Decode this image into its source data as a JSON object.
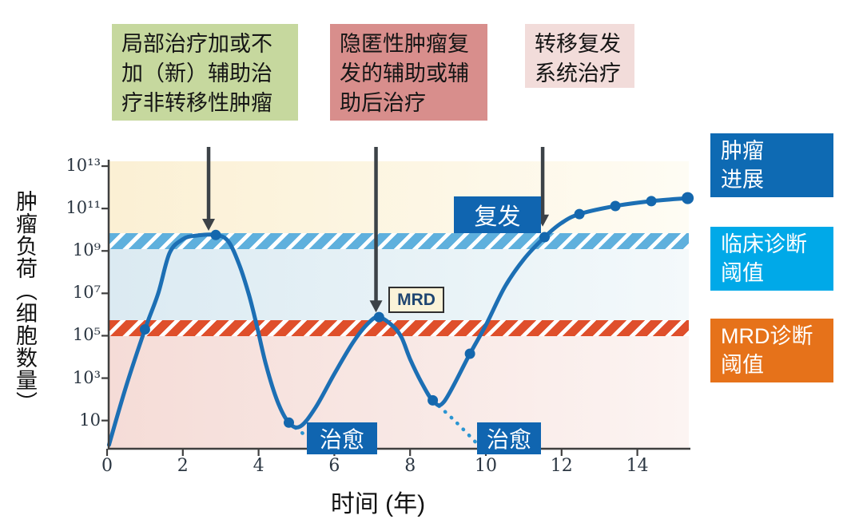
{
  "figure": {
    "x_axis_label": "时间 (年)",
    "y_axis_label": "肿瘤负荷（细胞数量）",
    "y_ticks": [
      "10¹³",
      "10¹¹",
      "10⁹",
      "10⁷",
      "10⁵",
      "10³",
      "10"
    ],
    "x_ticks": [
      "0",
      "2",
      "4",
      "6",
      "8",
      "10",
      "12",
      "14"
    ]
  },
  "top_boxes": [
    {
      "name": "local-therapy",
      "text": "局部治疗加或不\n加（新）辅助治\n疗非转移性肿瘤",
      "bg": "#c6d89e"
    },
    {
      "name": "occult-relapse-therapy",
      "text": "隐匿性肿瘤复\n发的辅助或辅\n助后治疗",
      "bg": "#d88e8c"
    },
    {
      "name": "metastatic-relapse-therapy",
      "text": "转移复发\n系统治疗",
      "bg": "#f2dcda"
    }
  ],
  "labels": {
    "mrd": "MRD",
    "relapse": "复发",
    "cure": "治愈"
  },
  "legend": [
    {
      "label": "肿瘤\n进展",
      "bg": "#0e6ab3"
    },
    {
      "label": "临床诊断\n阈值",
      "bg": "#00a9e8"
    },
    {
      "label": "MRD诊断\n阈值",
      "bg": "#e6721a"
    }
  ],
  "colors": {
    "curve": "#1c6fb4",
    "marker": "#1467ad",
    "dashed_cure": "#2a95d2",
    "clinical_stripe": "#5fb0dd",
    "mrd_stripe": "#df4f2b",
    "blue_label_bg": "#1065b0",
    "arrow": "#3c4247",
    "axis": "#3f3f3f"
  },
  "chart_data": {
    "type": "line",
    "xlabel": "时间 (年)",
    "ylabel": "肿瘤负荷（细胞数量）",
    "x_range": [
      0,
      15.5
    ],
    "y_scale": "log10(cells)",
    "y_tick_exponents": [
      13,
      11,
      9,
      7,
      5,
      3,
      1
    ],
    "x_tick_years": [
      0,
      2,
      4,
      6,
      8,
      10,
      12,
      14
    ],
    "clinical_threshold_log": 9.5,
    "mrd_threshold_log": 5.45,
    "marked_points_log": [
      [
        1.0,
        5.3
      ],
      [
        2.87,
        9.75
      ],
      [
        4.8,
        0.9
      ],
      [
        7.18,
        5.88
      ],
      [
        8.6,
        1.95
      ],
      [
        9.58,
        4.15
      ],
      [
        11.55,
        9.65
      ],
      [
        12.47,
        10.74
      ],
      [
        13.42,
        11.12
      ],
      [
        14.37,
        11.35
      ],
      [
        15.33,
        11.49
      ]
    ],
    "curve_trace_log": [
      [
        0.05,
        -0.15
      ],
      [
        0.5,
        2.6
      ],
      [
        1.0,
        5.3
      ],
      [
        1.35,
        7.0
      ],
      [
        1.65,
        8.9
      ],
      [
        2.0,
        9.55
      ],
      [
        2.35,
        9.72
      ],
      [
        2.87,
        9.75
      ],
      [
        3.2,
        9.45
      ],
      [
        3.5,
        8.3
      ],
      [
        3.75,
        6.9
      ],
      [
        3.95,
        5.5
      ],
      [
        4.2,
        3.6
      ],
      [
        4.5,
        1.9
      ],
      [
        4.8,
        0.9
      ],
      [
        5.1,
        0.72
      ],
      [
        5.5,
        1.6
      ],
      [
        6.0,
        3.2
      ],
      [
        6.5,
        4.7
      ],
      [
        6.9,
        5.6
      ],
      [
        7.18,
        5.88
      ],
      [
        7.55,
        5.45
      ],
      [
        7.78,
        4.9
      ],
      [
        8.0,
        3.9
      ],
      [
        8.3,
        2.8
      ],
      [
        8.6,
        1.95
      ],
      [
        8.9,
        1.9
      ],
      [
        9.58,
        4.15
      ],
      [
        10.0,
        5.5
      ],
      [
        10.5,
        7.3
      ],
      [
        11.0,
        8.6
      ],
      [
        11.55,
        9.65
      ],
      [
        12.0,
        10.32
      ],
      [
        12.47,
        10.74
      ],
      [
        13.42,
        11.12
      ],
      [
        14.37,
        11.35
      ],
      [
        15.33,
        11.49
      ]
    ],
    "cure_dashed_log": [
      [
        [
          4.8,
          0.9
        ],
        [
          5.2,
          0.35
        ],
        [
          5.6,
          -0.15
        ]
      ],
      [
        [
          8.6,
          1.95
        ],
        [
          9.2,
          0.95
        ],
        [
          9.8,
          -0.15
        ]
      ]
    ],
    "treatment_arrows": [
      {
        "x_year": 2.68,
        "tip_log": 9.95
      },
      {
        "x_year": 7.1,
        "tip_log": 6.1
      },
      {
        "x_year": 11.5,
        "tip_log": 10.15
      }
    ],
    "legend_entries": [
      "肿瘤进展",
      "临床诊断阈值",
      "MRD诊断阈值"
    ],
    "grid": false
  }
}
